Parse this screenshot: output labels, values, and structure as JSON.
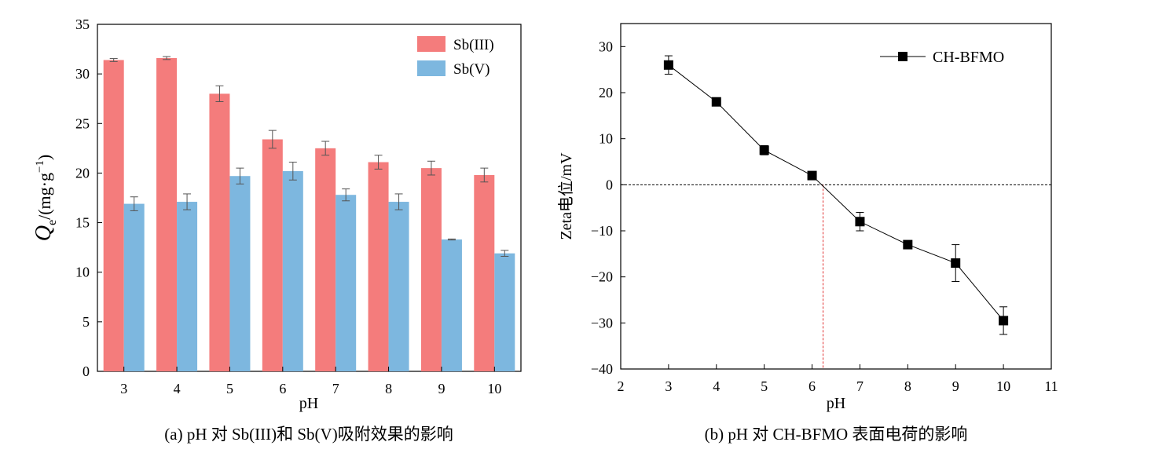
{
  "chart_data": [
    {
      "type": "bar",
      "caption": "(a) pH 对 Sb(III)和 Sb(V)吸附效果的影响",
      "xlabel": "pH",
      "ylabel_main": "Q",
      "ylabel_sub": "e",
      "ylabel_unit": "/(mg·g",
      "ylabel_sup": "−1",
      "ylabel_close": ")",
      "categories": [
        "3",
        "4",
        "5",
        "6",
        "7",
        "8",
        "9",
        "10"
      ],
      "series": [
        {
          "name": "Sb(III)",
          "color": "#f47c7c",
          "values": [
            31.4,
            31.6,
            28.0,
            23.4,
            22.5,
            21.1,
            20.5,
            19.8
          ],
          "errors": [
            0.15,
            0.15,
            0.8,
            0.9,
            0.7,
            0.7,
            0.7,
            0.7
          ]
        },
        {
          "name": "Sb(V)",
          "color": "#7db7df",
          "values": [
            16.9,
            17.1,
            19.7,
            20.2,
            17.8,
            17.1,
            13.3,
            11.9
          ],
          "errors": [
            0.7,
            0.8,
            0.8,
            0.9,
            0.6,
            0.8,
            0.05,
            0.3
          ]
        }
      ],
      "yticks": [
        "0",
        "5",
        "10",
        "15",
        "20",
        "25",
        "30",
        "35"
      ],
      "ylim": [
        0,
        35
      ],
      "legend": "top-right",
      "grid": false
    },
    {
      "type": "line",
      "caption": "(b) pH 对 CH-BFMO 表面电荷的影响",
      "xlabel": "pH",
      "ylabel": "Zeta电位/mV",
      "series": [
        {
          "name": "CH-BFMO",
          "color": "#000000",
          "marker": "square",
          "x": [
            3,
            4,
            5,
            6,
            7,
            8,
            9,
            10
          ],
          "y": [
            26,
            18,
            7.5,
            2,
            -8,
            -13,
            -17,
            -29.5
          ],
          "errors": [
            2,
            0.5,
            1,
            0.5,
            2,
            0.5,
            4,
            3
          ]
        }
      ],
      "xticks": [
        "2",
        "3",
        "4",
        "5",
        "6",
        "7",
        "8",
        "9",
        "10",
        "11"
      ],
      "yticks": [
        "30",
        "20",
        "10",
        "0",
        "−10",
        "−20",
        "−30",
        "−40"
      ],
      "xlim": [
        2,
        11
      ],
      "ylim": [
        -40,
        35
      ],
      "reference_lines": {
        "zero_line_y": 0,
        "isoelectric_x": 6.23
      },
      "legend": "top-right",
      "grid": false
    }
  ]
}
